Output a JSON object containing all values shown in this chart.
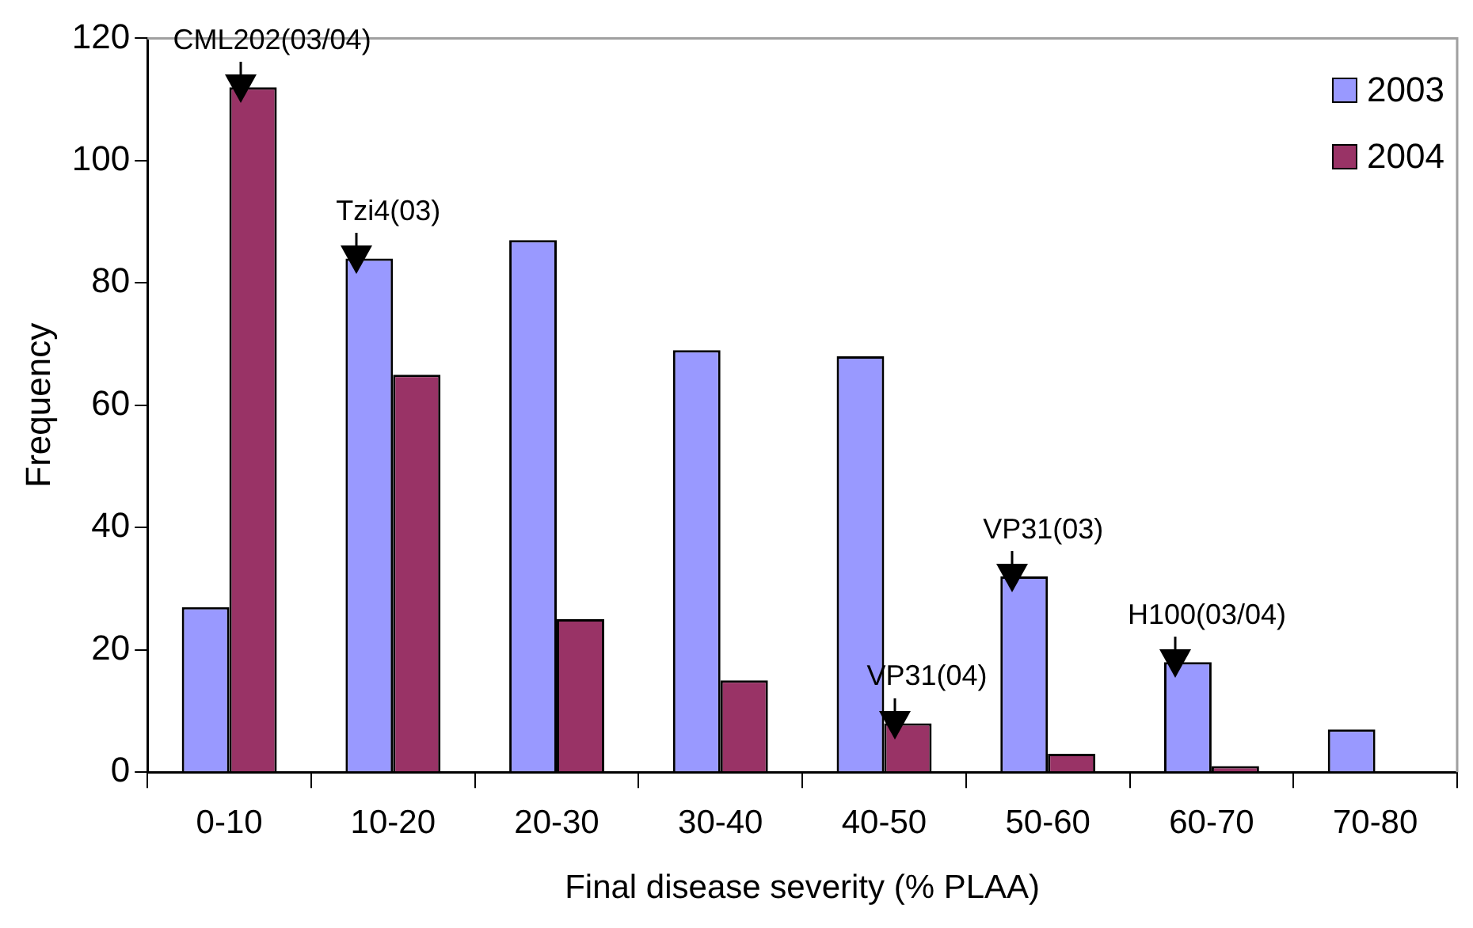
{
  "chart_data": {
    "type": "bar",
    "xlabel": "Final disease severity (% PLAA)",
    "ylabel": "Frequency",
    "categories": [
      "0-10",
      "10-20",
      "20-30",
      "30-40",
      "40-50",
      "50-60",
      "60-70",
      "70-80"
    ],
    "series": [
      {
        "name": "2003",
        "color": "#9999ff",
        "values": [
          27,
          84,
          87,
          69,
          68,
          32,
          18,
          7
        ]
      },
      {
        "name": "2004",
        "color": "#993366",
        "values": [
          112,
          65,
          25,
          15,
          8,
          3,
          1,
          null
        ]
      }
    ],
    "ylim": [
      0,
      120
    ],
    "yticks": [
      0,
      20,
      40,
      60,
      80,
      100,
      120
    ],
    "grid": false,
    "legend": "top right",
    "annotations": [
      {
        "text": "CML202(03/04)",
        "x": "0-10",
        "y": 112
      },
      {
        "text": "Tzi4(03)",
        "x": "10-20",
        "y": 84
      },
      {
        "text": "VP31(04)",
        "x": "40-50",
        "y": 8
      },
      {
        "text": "VP31(03)",
        "x": "50-60",
        "y": 32
      },
      {
        "text": "H100(03/04)",
        "x": "60-70",
        "y": 18
      }
    ]
  }
}
